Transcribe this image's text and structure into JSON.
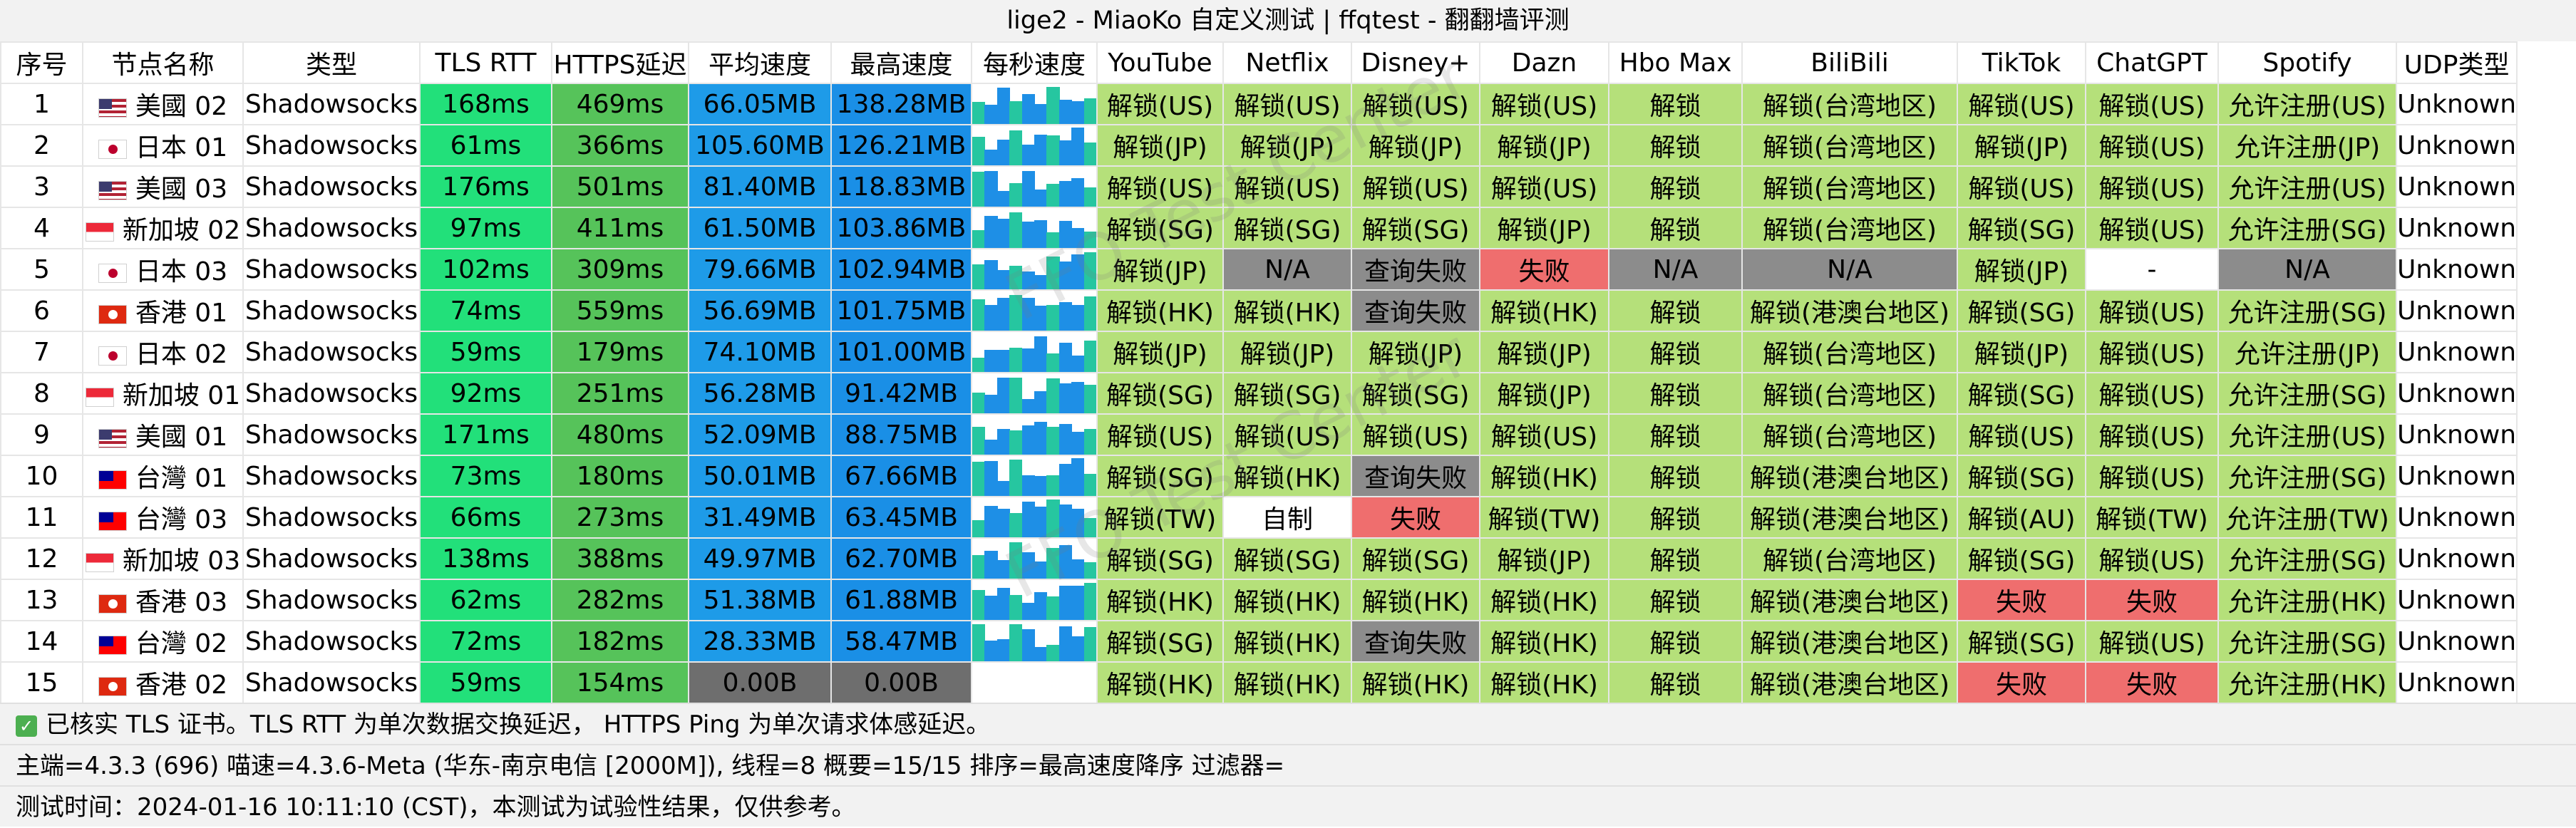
{
  "title": "lige2 - MiaoKo 自定义测试 | ffqtest - 翻翻墙评测",
  "watermark": "FFQ Test Center",
  "colors": {
    "tls": "#22e07a",
    "https": "#56c35a",
    "speed": "#1e9be8",
    "unlock_ok": "#b5e07a",
    "na": "#8c8c8c",
    "fail": "#ef6e6e"
  },
  "columns": [
    "序号",
    "节点名称",
    "类型",
    "TLS RTT",
    "HTTPS延迟",
    "平均速度",
    "最高速度",
    "每秒速度",
    "YouTube",
    "Netflix",
    "Disney+",
    "Dazn",
    "Hbo Max",
    "BiliBili",
    "TikTok",
    "ChatGPT",
    "Spotify",
    "UDP类型"
  ],
  "rows": [
    {
      "idx": "1",
      "flag": "us",
      "name": "美國 02",
      "type": "Shadowsocks",
      "tls": "168ms",
      "https": "469ms",
      "avg": "66.05MB",
      "max": "138.28MB",
      "youtube": "解锁(US)",
      "netflix": "解锁(US)",
      "disney": "解锁(US)",
      "dazn": "解锁(US)",
      "hbo": "解锁",
      "bili": "解锁(台湾地区)",
      "tiktok": "解锁(US)",
      "chatgpt": "解锁(US)",
      "spotify": "允许注册(US)",
      "udp": "Unknown"
    },
    {
      "idx": "2",
      "flag": "jp",
      "name": "日本 01",
      "type": "Shadowsocks",
      "tls": "61ms",
      "https": "366ms",
      "avg": "105.60MB",
      "max": "126.21MB",
      "youtube": "解锁(JP)",
      "netflix": "解锁(JP)",
      "disney": "解锁(JP)",
      "dazn": "解锁(JP)",
      "hbo": "解锁",
      "bili": "解锁(台湾地区)",
      "tiktok": "解锁(JP)",
      "chatgpt": "解锁(US)",
      "spotify": "允许注册(JP)",
      "udp": "Unknown"
    },
    {
      "idx": "3",
      "flag": "us",
      "name": "美國 03",
      "type": "Shadowsocks",
      "tls": "176ms",
      "https": "501ms",
      "avg": "81.40MB",
      "max": "118.83MB",
      "youtube": "解锁(US)",
      "netflix": "解锁(US)",
      "disney": "解锁(US)",
      "dazn": "解锁(US)",
      "hbo": "解锁",
      "bili": "解锁(台湾地区)",
      "tiktok": "解锁(US)",
      "chatgpt": "解锁(US)",
      "spotify": "允许注册(US)",
      "udp": "Unknown"
    },
    {
      "idx": "4",
      "flag": "sg",
      "name": "新加坡 02",
      "type": "Shadowsocks",
      "tls": "97ms",
      "https": "411ms",
      "avg": "61.50MB",
      "max": "103.86MB",
      "youtube": "解锁(SG)",
      "netflix": "解锁(SG)",
      "disney": "解锁(SG)",
      "dazn": "解锁(JP)",
      "hbo": "解锁",
      "bili": "解锁(台湾地区)",
      "tiktok": "解锁(SG)",
      "chatgpt": "解锁(US)",
      "spotify": "允许注册(SG)",
      "udp": "Unknown"
    },
    {
      "idx": "5",
      "flag": "jp",
      "name": "日本 03",
      "type": "Shadowsocks",
      "tls": "102ms",
      "https": "309ms",
      "avg": "79.66MB",
      "max": "102.94MB",
      "youtube": "解锁(JP)",
      "netflix": "N/A",
      "disney": "查询失败",
      "dazn": "失败",
      "hbo": "N/A",
      "bili": "N/A",
      "tiktok": "解锁(JP)",
      "chatgpt": "-",
      "spotify": "N/A",
      "udp": "Unknown"
    },
    {
      "idx": "6",
      "flag": "hk",
      "name": "香港 01",
      "type": "Shadowsocks",
      "tls": "74ms",
      "https": "559ms",
      "avg": "56.69MB",
      "max": "101.75MB",
      "youtube": "解锁(HK)",
      "netflix": "解锁(HK)",
      "disney": "查询失败",
      "dazn": "解锁(HK)",
      "hbo": "解锁",
      "bili": "解锁(港澳台地区)",
      "tiktok": "解锁(SG)",
      "chatgpt": "解锁(US)",
      "spotify": "允许注册(SG)",
      "udp": "Unknown"
    },
    {
      "idx": "7",
      "flag": "jp",
      "name": "日本 02",
      "type": "Shadowsocks",
      "tls": "59ms",
      "https": "179ms",
      "avg": "74.10MB",
      "max": "101.00MB",
      "youtube": "解锁(JP)",
      "netflix": "解锁(JP)",
      "disney": "解锁(JP)",
      "dazn": "解锁(JP)",
      "hbo": "解锁",
      "bili": "解锁(台湾地区)",
      "tiktok": "解锁(JP)",
      "chatgpt": "解锁(US)",
      "spotify": "允许注册(JP)",
      "udp": "Unknown"
    },
    {
      "idx": "8",
      "flag": "sg",
      "name": "新加坡 01",
      "type": "Shadowsocks",
      "tls": "92ms",
      "https": "251ms",
      "avg": "56.28MB",
      "max": "91.42MB",
      "youtube": "解锁(SG)",
      "netflix": "解锁(SG)",
      "disney": "解锁(SG)",
      "dazn": "解锁(JP)",
      "hbo": "解锁",
      "bili": "解锁(台湾地区)",
      "tiktok": "解锁(SG)",
      "chatgpt": "解锁(US)",
      "spotify": "允许注册(SG)",
      "udp": "Unknown"
    },
    {
      "idx": "9",
      "flag": "us",
      "name": "美國 01",
      "type": "Shadowsocks",
      "tls": "171ms",
      "https": "480ms",
      "avg": "52.09MB",
      "max": "88.75MB",
      "youtube": "解锁(US)",
      "netflix": "解锁(US)",
      "disney": "解锁(US)",
      "dazn": "解锁(US)",
      "hbo": "解锁",
      "bili": "解锁(台湾地区)",
      "tiktok": "解锁(US)",
      "chatgpt": "解锁(US)",
      "spotify": "允许注册(US)",
      "udp": "Unknown"
    },
    {
      "idx": "10",
      "flag": "tw",
      "name": "台灣 01",
      "type": "Shadowsocks",
      "tls": "73ms",
      "https": "180ms",
      "avg": "50.01MB",
      "max": "67.66MB",
      "youtube": "解锁(SG)",
      "netflix": "解锁(HK)",
      "disney": "查询失败",
      "dazn": "解锁(HK)",
      "hbo": "解锁",
      "bili": "解锁(港澳台地区)",
      "tiktok": "解锁(SG)",
      "chatgpt": "解锁(US)",
      "spotify": "允许注册(SG)",
      "udp": "Unknown"
    },
    {
      "idx": "11",
      "flag": "tw",
      "name": "台灣 03",
      "type": "Shadowsocks",
      "tls": "66ms",
      "https": "273ms",
      "avg": "31.49MB",
      "max": "63.45MB",
      "youtube": "解锁(TW)",
      "netflix": "自制",
      "disney": "失败",
      "dazn": "解锁(TW)",
      "hbo": "解锁",
      "bili": "解锁(港澳台地区)",
      "tiktok": "解锁(AU)",
      "chatgpt": "解锁(TW)",
      "spotify": "允许注册(TW)",
      "udp": "Unknown"
    },
    {
      "idx": "12",
      "flag": "sg",
      "name": "新加坡 03",
      "type": "Shadowsocks",
      "tls": "138ms",
      "https": "388ms",
      "avg": "49.97MB",
      "max": "62.70MB",
      "youtube": "解锁(SG)",
      "netflix": "解锁(SG)",
      "disney": "解锁(SG)",
      "dazn": "解锁(JP)",
      "hbo": "解锁",
      "bili": "解锁(台湾地区)",
      "tiktok": "解锁(SG)",
      "chatgpt": "解锁(US)",
      "spotify": "允许注册(SG)",
      "udp": "Unknown"
    },
    {
      "idx": "13",
      "flag": "hk",
      "name": "香港 03",
      "type": "Shadowsocks",
      "tls": "62ms",
      "https": "282ms",
      "avg": "51.38MB",
      "max": "61.88MB",
      "youtube": "解锁(HK)",
      "netflix": "解锁(HK)",
      "disney": "解锁(HK)",
      "dazn": "解锁(HK)",
      "hbo": "解锁",
      "bili": "解锁(港澳台地区)",
      "tiktok": "失败",
      "chatgpt": "失败",
      "spotify": "允许注册(HK)",
      "udp": "Unknown"
    },
    {
      "idx": "14",
      "flag": "tw",
      "name": "台灣 02",
      "type": "Shadowsocks",
      "tls": "72ms",
      "https": "182ms",
      "avg": "28.33MB",
      "max": "58.47MB",
      "youtube": "解锁(SG)",
      "netflix": "解锁(HK)",
      "disney": "查询失败",
      "dazn": "解锁(HK)",
      "hbo": "解锁",
      "bili": "解锁(港澳台地区)",
      "tiktok": "解锁(SG)",
      "chatgpt": "解锁(US)",
      "spotify": "允许注册(SG)",
      "udp": "Unknown"
    },
    {
      "idx": "15",
      "flag": "hk",
      "name": "香港 02",
      "type": "Shadowsocks",
      "tls": "59ms",
      "https": "154ms",
      "avg": "0.00B",
      "max": "0.00B",
      "youtube": "解锁(HK)",
      "netflix": "解锁(HK)",
      "disney": "解锁(HK)",
      "dazn": "解锁(HK)",
      "hbo": "解锁",
      "bili": "解锁(港澳台地区)",
      "tiktok": "失败",
      "chatgpt": "失败",
      "spotify": "允许注册(HK)",
      "udp": "Unknown"
    }
  ],
  "footer": {
    "note": "已核实 TLS 证书。TLS RTT 为单次数据交换延迟， HTTPS Ping 为单次请求体感延迟。",
    "info": "主端=4.3.3 (696) 喵速=4.3.6-Meta (华东-南京电信 [2000M]), 线程=8 概要=15/15 排序=最高速度降序 过滤器=",
    "time": "测试时间：2024-01-16 10:11:10 (CST)，本测试为试验性结果，仅供参考。"
  }
}
